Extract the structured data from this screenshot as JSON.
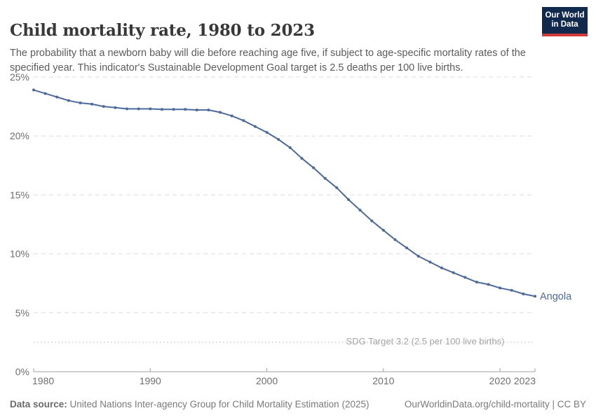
{
  "header": {
    "title": "Child mortality rate, 1980 to 2023",
    "subtitle": "The probability that a newborn baby will die before reaching age five, if subject to age-specific mortality rates of the specified year. This indicator's Sustainable Development Goal target is 2.5 deaths per 100 live births.",
    "logo": {
      "line1": "Our World",
      "line2": "in Data"
    }
  },
  "chart_data": {
    "type": "line",
    "title": "Child mortality rate, 1980 to 2023",
    "xlabel": "",
    "ylabel": "",
    "xlim": [
      1980,
      2023
    ],
    "ylim": [
      0,
      25
    ],
    "x_ticks": [
      1980,
      1990,
      2000,
      2010,
      2020,
      2023
    ],
    "y_ticks": [
      0,
      5,
      10,
      15,
      20,
      25
    ],
    "y_tick_suffix": "%",
    "grid": "horizontal-dashed",
    "legend_position": "end-of-line-label",
    "annotation": {
      "label": "SDG Target 3.2 (2.5 per 100 live births)",
      "value": 2.5
    },
    "series": [
      {
        "name": "Angola",
        "years": [
          1980,
          1981,
          1982,
          1983,
          1984,
          1985,
          1986,
          1987,
          1988,
          1989,
          1990,
          1991,
          1992,
          1993,
          1994,
          1995,
          1996,
          1997,
          1998,
          1999,
          2000,
          2001,
          2002,
          2003,
          2004,
          2005,
          2006,
          2007,
          2008,
          2009,
          2010,
          2011,
          2012,
          2013,
          2014,
          2015,
          2016,
          2017,
          2018,
          2019,
          2020,
          2021,
          2022,
          2023
        ],
        "values": [
          23.9,
          23.6,
          23.3,
          23.0,
          22.8,
          22.7,
          22.5,
          22.4,
          22.3,
          22.3,
          22.3,
          22.25,
          22.25,
          22.25,
          22.2,
          22.2,
          22.0,
          21.7,
          21.3,
          20.8,
          20.3,
          19.7,
          19.0,
          18.1,
          17.3,
          16.4,
          15.6,
          14.6,
          13.7,
          12.8,
          12.0,
          11.2,
          10.5,
          9.8,
          9.3,
          8.8,
          8.4,
          8.0,
          7.6,
          7.4,
          7.1,
          6.9,
          6.6,
          6.4
        ]
      }
    ],
    "colors": {
      "line": "#4C6A9C",
      "grid": "#dddddd",
      "axis": "#a0a0a0",
      "tick_label": "#6e6e6e",
      "annotation_line": "#cccccc",
      "annotation_text": "#a6a6a6"
    }
  },
  "footer": {
    "source_label": "Data source:",
    "source_value": " United Nations Inter-agency Group for Child Mortality Estimation (2025)",
    "credit": "OurWorldinData.org/child-mortality | CC BY"
  }
}
